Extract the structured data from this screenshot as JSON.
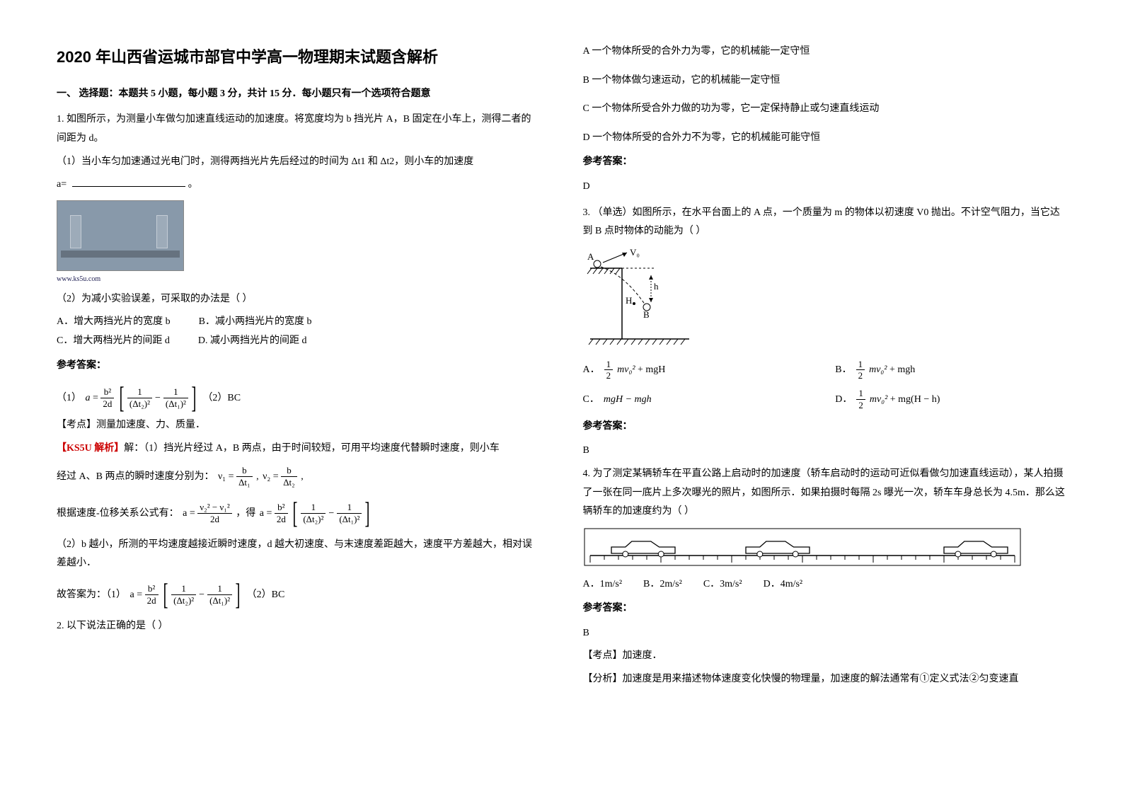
{
  "title": "2020 年山西省运城市部官中学高一物理期末试题含解析",
  "section1": "一、 选择题：本题共 5 小题，每小题 3 分，共计 15 分．每小题只有一个选项符合题意",
  "q1": {
    "stem_l1": "1. 如图所示，为测量小车做匀加速直线运动的加速度。将宽度均为 b 挡光片 A，B 固定在小车上，测得二者的间距为 d。",
    "stem_l2": "（1）当小车匀加速通过光电门时，测得两挡光片先后经过的时间为 Δt1 和 Δt2，则小车的加速度",
    "a_eq": "a=",
    "fig_caption": "www.ks5u.com",
    "sub2": "（2）为减小实验误差，可采取的办法是（           ）",
    "optA": "A．增大两挡光片的宽度 b",
    "optB": "B．减小两挡光片的宽度 b",
    "optC": "C．增大两档光片的间距 d",
    "optD": "D. 减小两挡光片的间距 d",
    "ans_label": "参考答案：",
    "ans1_prefix": "（1）",
    "ans1_suffix": "（2）BC",
    "kd": "【考点】测量加速度、力、质量．",
    "jx_tag": "【KS5U 解析】",
    "jx1": "解：（1）挡光片经过 A，B 两点，由于时间较短，可用平均速度代替瞬时速度，则小车",
    "jx2_pre": "经过 A、B 两点的瞬时速度分别为：",
    "jx3_pre": "根据速度-位移关系公式有：",
    "jx3_mid": "，得",
    "jx4": "（2）b 越小，所测的平均速度越接近瞬时速度，d 越大初速度、与末速度差距越大，速度平方差越大，相对误差越小．",
    "jx5_pre": "故答案为：（1）",
    "jx5_suf": "（2）BC",
    "frac_b2_2d_n": "b²",
    "frac_b2_2d_d": "2d",
    "one": "1",
    "dt2sq": "(Δt₂)²",
    "dt1sq": "(Δt₁)²",
    "minus": "−",
    "v1eq": "ν₁ =",
    "b": "b",
    "dt1": "Δt₁",
    "comma": ",",
    "v2eq": "ν₂ =",
    "dt2": "Δt₂",
    "aeq2": "a =",
    "v2sq_v1sq": "ν₂² − ν₁²",
    "twod": "2d"
  },
  "q2": {
    "stem": "2. 以下说法正确的是（    ）",
    "A": "A 一个物体所受的合外力为零，它的机械能一定守恒",
    "B": "B 一个物体做匀速运动，它的机械能一定守恒",
    "C": "C     一个物体所受合外力做的功为零，它一定保持静止或匀速直线运动",
    "D": "D 一个物体所受的合外力不为零，它的机械能可能守恒",
    "ans_label": "参考答案：",
    "ans": "D"
  },
  "q3": {
    "stem": "3. （单选）如图所示，在水平台面上的 A 点，一个质量为 m 的物体以初速度 V0 抛出。不计空气阻力，当它达到 B 点时物体的动能为（                  ）",
    "labels": {
      "A": "A",
      "V0": "V₀",
      "H": "H",
      "h": "h",
      "B": "B"
    },
    "optA_pre": "A．",
    "optA_main": "½mv₀² + mgH",
    "optB_pre": "B．",
    "optB_main": "½mv₀² + mgh",
    "optC_pre": "C．",
    "optC_main": "mgH − mgh",
    "optD_pre": "D．",
    "optD_main": "½mv₀² + mg(H − h)",
    "half_n": "1",
    "half_d": "2",
    "mv0sq": "mv₀²",
    "plus_mgH": " + mgH",
    "plus_mgh": " + mgh",
    "mgH_mgh": "mgH − mgh",
    "plus_mgHh": " + mg(H − h)",
    "ans_label": "参考答案：",
    "ans": "B"
  },
  "q4": {
    "stem": "4. 为了测定某辆轿车在平直公路上启动时的加速度（轿车启动时的运动可近似看做匀加速直线运动），某人拍摄了一张在同一底片上多次曝光的照片，如图所示．如果拍摄时每隔 2s 曝光一次，轿车车身总长为 4.5m．那么这辆轿车的加速度约为（     ）",
    "A": "A．1m/s²",
    "B": "B．2m/s²",
    "C": "C．3m/s²",
    "D": "D．4m/s²",
    "ans_label": "参考答案：",
    "ans": "B",
    "kd": "【考点】加速度．",
    "fx": "【分析】加速度是用来描述物体速度变化快慢的物理量，加速度的解法通常有①定义式法②匀变速直",
    "ruler_ticks": 30,
    "car_positions": [
      1.5,
      11,
      25
    ],
    "car_len": 4.5,
    "colors": {
      "stroke": "#000000",
      "fill_car": "#ffffff"
    }
  },
  "colors": {
    "text": "#000000",
    "red": "#cc0000",
    "photo_bg": "#8899aa"
  }
}
